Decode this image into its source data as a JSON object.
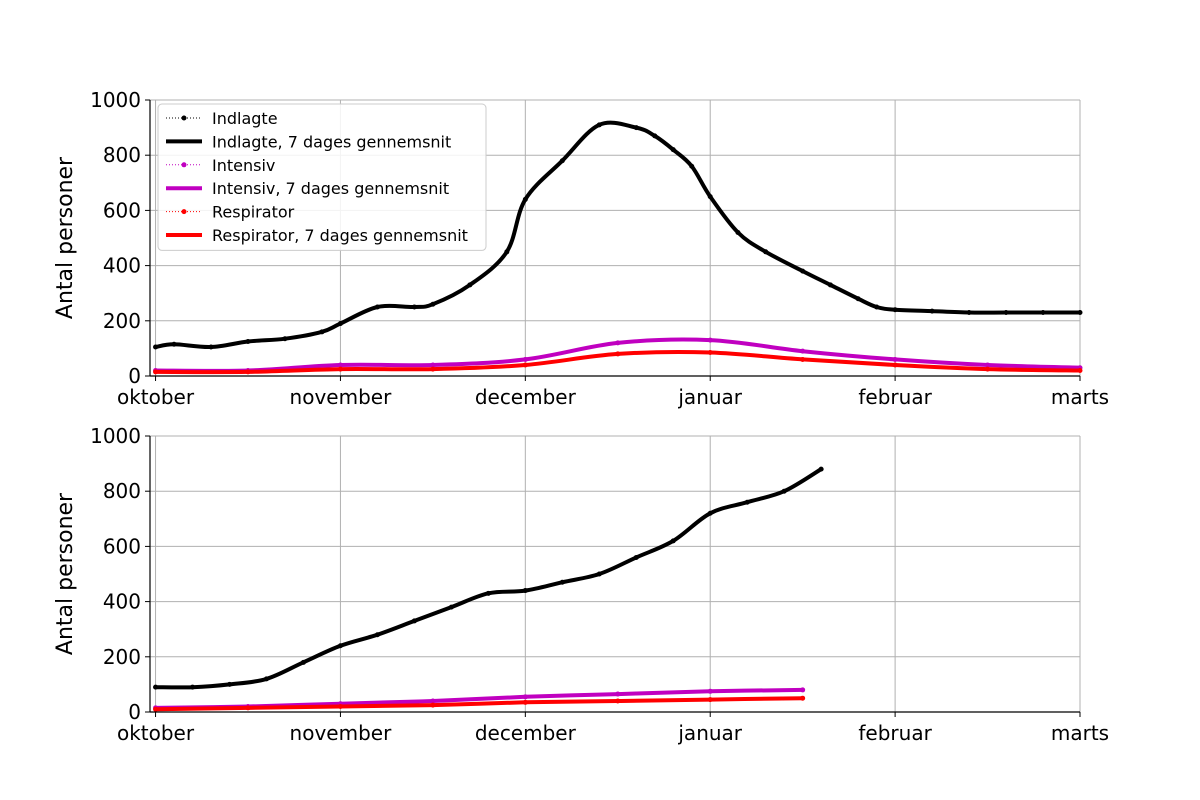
{
  "chart_data": [
    {
      "type": "line",
      "ylabel": "Antal personer",
      "ylim": [
        0,
        1000
      ],
      "yticks": [
        0,
        200,
        400,
        600,
        800,
        1000
      ],
      "x_axis": {
        "kind": "month",
        "range": [
          "oktober",
          "marts"
        ],
        "tick_labels": [
          "oktober",
          "november",
          "december",
          "januar",
          "februar",
          "marts"
        ]
      },
      "grid": true,
      "legend_position": "top-left",
      "legend": [
        {
          "label": "Indlagte",
          "style": "dotted-markers",
          "color": "#000000"
        },
        {
          "label": "Indlagte, 7 dages gennemsnit",
          "style": "thick-line",
          "color": "#000000"
        },
        {
          "label": "Intensiv",
          "style": "dotted-markers",
          "color": "#c000c0"
        },
        {
          "label": "Intensiv, 7 dages gennemsnit",
          "style": "thick-line",
          "color": "#c000c0"
        },
        {
          "label": "Respirator",
          "style": "dotted-markers",
          "color": "#ff0000"
        },
        {
          "label": "Respirator, 7 dages gennemsnit",
          "style": "thick-line",
          "color": "#ff0000"
        }
      ],
      "series": [
        {
          "name": "Indlagte, 7 dages gennemsnit",
          "color": "#000000",
          "x": [
            0,
            0.1,
            0.3,
            0.5,
            0.7,
            0.9,
            1.0,
            1.2,
            1.4,
            1.5,
            1.7,
            1.9,
            2.0,
            2.2,
            2.4,
            2.6,
            2.7,
            2.8,
            2.9,
            3.0,
            3.15,
            3.3,
            3.5,
            3.65,
            3.8,
            3.9,
            4.0,
            4.2,
            4.4,
            4.6,
            4.8,
            5.0
          ],
          "y": [
            105,
            115,
            105,
            125,
            135,
            160,
            190,
            250,
            250,
            260,
            330,
            450,
            640,
            780,
            910,
            900,
            870,
            820,
            760,
            650,
            520,
            450,
            380,
            330,
            280,
            250,
            240,
            235,
            230,
            230,
            230,
            230
          ]
        },
        {
          "name": "Intensiv, 7 dages gennemsnit",
          "color": "#c000c0",
          "x": [
            0,
            0.5,
            1.0,
            1.5,
            2.0,
            2.5,
            3.0,
            3.5,
            4.0,
            4.5,
            5.0
          ],
          "y": [
            20,
            20,
            40,
            40,
            60,
            120,
            130,
            90,
            60,
            40,
            30
          ]
        },
        {
          "name": "Respirator, 7 dages gennemsnit",
          "color": "#ff0000",
          "x": [
            0,
            0.5,
            1.0,
            1.5,
            2.0,
            2.5,
            3.0,
            3.5,
            4.0,
            4.5,
            5.0
          ],
          "y": [
            15,
            15,
            25,
            25,
            40,
            80,
            85,
            60,
            40,
            25,
            20
          ]
        }
      ]
    },
    {
      "type": "line",
      "ylabel": "Antal personer",
      "ylim": [
        0,
        1000
      ],
      "yticks": [
        0,
        200,
        400,
        600,
        800,
        1000
      ],
      "x_axis": {
        "kind": "month",
        "range": [
          "oktober",
          "marts"
        ],
        "tick_labels": [
          "oktober",
          "november",
          "december",
          "januar",
          "februar",
          "marts"
        ]
      },
      "grid": true,
      "series": [
        {
          "name": "Indlagte, 7 dages gennemsnit",
          "color": "#000000",
          "x": [
            0,
            0.2,
            0.4,
            0.6,
            0.8,
            1.0,
            1.2,
            1.4,
            1.6,
            1.8,
            2.0,
            2.2,
            2.4,
            2.6,
            2.8,
            3.0,
            3.2,
            3.4,
            3.6
          ],
          "y": [
            90,
            90,
            100,
            120,
            180,
            240,
            280,
            330,
            380,
            430,
            440,
            470,
            500,
            560,
            620,
            720,
            760,
            800,
            880
          ]
        },
        {
          "name": "Intensiv, 7 dages gennemsnit",
          "color": "#c000c0",
          "x": [
            0,
            0.5,
            1.0,
            1.5,
            2.0,
            2.5,
            3.0,
            3.5
          ],
          "y": [
            15,
            20,
            30,
            40,
            55,
            65,
            75,
            80
          ]
        },
        {
          "name": "Respirator, 7 dages gennemsnit",
          "color": "#ff0000",
          "x": [
            0,
            0.5,
            1.0,
            1.5,
            2.0,
            2.5,
            3.0,
            3.5
          ],
          "y": [
            10,
            15,
            20,
            25,
            35,
            40,
            45,
            50
          ]
        }
      ]
    }
  ]
}
